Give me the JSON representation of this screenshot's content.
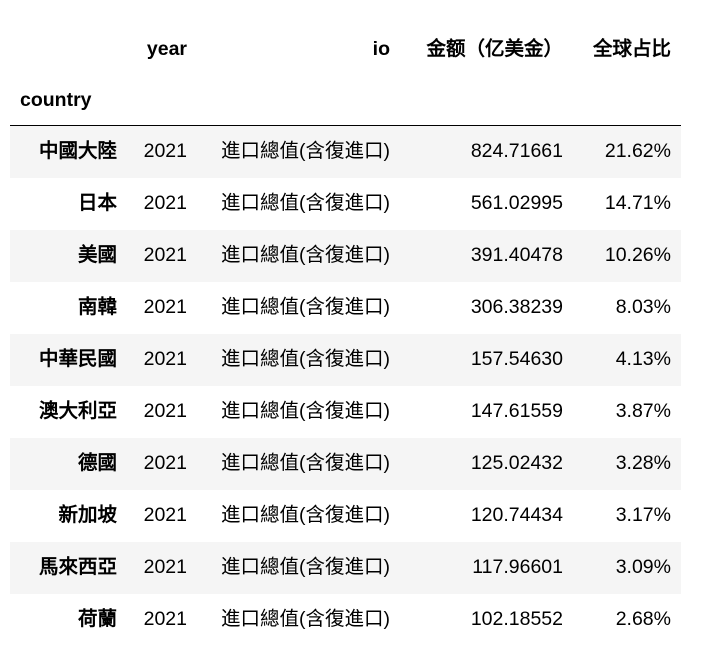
{
  "table": {
    "index_name": "country",
    "columns": [
      "year",
      "io",
      "金额（亿美金）",
      "全球占比"
    ],
    "rows": [
      {
        "country": "中國大陸",
        "year": "2021",
        "io": "進口總值(含復進口)",
        "amount": "824.71661",
        "share": "21.62%"
      },
      {
        "country": "日本",
        "year": "2021",
        "io": "進口總值(含復進口)",
        "amount": "561.02995",
        "share": "14.71%"
      },
      {
        "country": "美國",
        "year": "2021",
        "io": "進口總值(含復進口)",
        "amount": "391.40478",
        "share": "10.26%"
      },
      {
        "country": "南韓",
        "year": "2021",
        "io": "進口總值(含復進口)",
        "amount": "306.38239",
        "share": "8.03%"
      },
      {
        "country": "中華民國",
        "year": "2021",
        "io": "進口總值(含復進口)",
        "amount": "157.54630",
        "share": "4.13%"
      },
      {
        "country": "澳大利亞",
        "year": "2021",
        "io": "進口總值(含復進口)",
        "amount": "147.61559",
        "share": "3.87%"
      },
      {
        "country": "德國",
        "year": "2021",
        "io": "進口總值(含復進口)",
        "amount": "125.02432",
        "share": "3.28%"
      },
      {
        "country": "新加坡",
        "year": "2021",
        "io": "進口總值(含復進口)",
        "amount": "120.74434",
        "share": "3.17%"
      },
      {
        "country": "馬來西亞",
        "year": "2021",
        "io": "進口總值(含復進口)",
        "amount": "117.96601",
        "share": "3.09%"
      },
      {
        "country": "荷蘭",
        "year": "2021",
        "io": "進口總值(含復進口)",
        "amount": "102.18552",
        "share": "2.68%"
      }
    ]
  },
  "colors": {
    "stripe": "#f5f5f5",
    "text": "#000000",
    "background": "#ffffff"
  }
}
